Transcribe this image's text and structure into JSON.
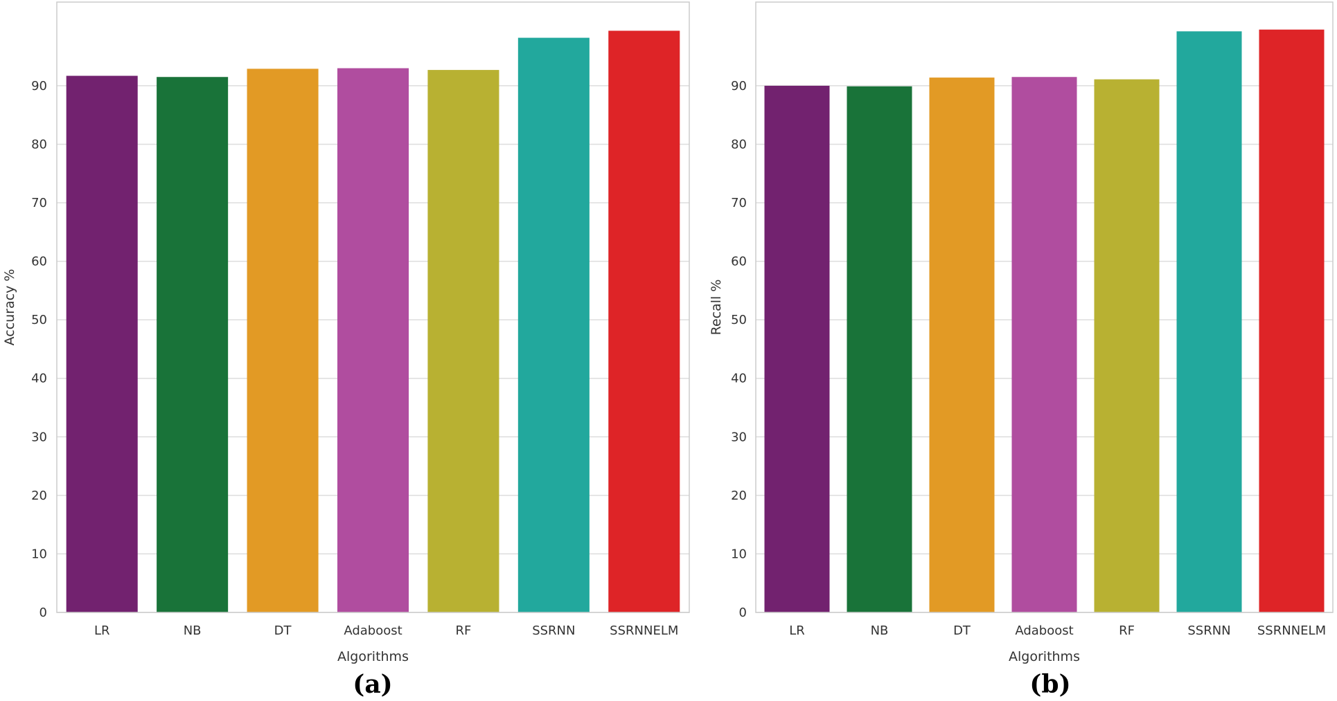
{
  "panels": [
    {
      "label": "(a)"
    },
    {
      "label": "(b)"
    }
  ],
  "chart_data": [
    {
      "type": "bar",
      "title": "",
      "categories": [
        "LR",
        "NB",
        "DT",
        "Adaboost",
        "RF",
        "SSRNN",
        "SSRNNELM"
      ],
      "values": [
        91.7,
        91.5,
        92.9,
        93.0,
        92.7,
        98.2,
        99.4
      ],
      "colors": [
        "#72226f",
        "#197339",
        "#e29a25",
        "#b04d9f",
        "#b8b132",
        "#22a89d",
        "#de2427"
      ],
      "xlabel": "Algorithms",
      "ylabel": "Accuracy %",
      "ylim": [
        0,
        104.3
      ],
      "yticks": [
        0,
        10,
        20,
        30,
        40,
        50,
        60,
        70,
        80,
        90
      ],
      "grid": true,
      "legend": "none"
    },
    {
      "type": "bar",
      "title": "",
      "categories": [
        "LR",
        "NB",
        "DT",
        "Adaboost",
        "RF",
        "SSRNN",
        "SSRNNELM"
      ],
      "values": [
        90.0,
        89.9,
        91.4,
        91.5,
        91.1,
        99.3,
        99.6
      ],
      "colors": [
        "#72226f",
        "#197339",
        "#e29a25",
        "#b04d9f",
        "#b8b132",
        "#22a89d",
        "#de2427"
      ],
      "xlabel": "Algorithms",
      "ylabel": "Recall %",
      "ylim": [
        0,
        104.3
      ],
      "yticks": [
        0,
        10,
        20,
        30,
        40,
        50,
        60,
        70,
        80,
        90
      ],
      "grid": true,
      "legend": "none"
    }
  ]
}
